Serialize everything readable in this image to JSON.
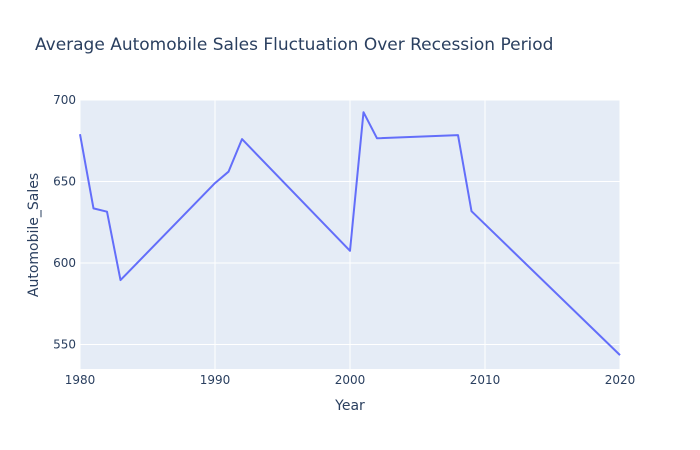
{
  "chart_data": {
    "type": "line",
    "title": "Average Automobile Sales Fluctuation Over Recession Period",
    "xlabel": "Year",
    "ylabel": "Automobile_Sales",
    "xlim": [
      1980,
      2020
    ],
    "ylim": [
      535,
      700
    ],
    "xticks": [
      1980,
      1990,
      2000,
      2010,
      2020
    ],
    "yticks": [
      550,
      600,
      650,
      700
    ],
    "grid": true,
    "legend": "none",
    "colors": {
      "line": "#636efa",
      "plot_bg": "#e5ecf6",
      "grid": "#ffffff",
      "text": "#2a3f5f"
    },
    "series": [
      {
        "x": [
          1980,
          1981,
          1982,
          1983,
          1990,
          1991,
          1992,
          2000,
          2001,
          2002,
          2008,
          2009,
          2020
        ],
        "y": [
          679,
          633.5,
          631.5,
          589.5,
          649,
          656,
          676,
          607.5,
          692.5,
          676.5,
          678.5,
          631.8,
          543.5
        ]
      }
    ]
  }
}
